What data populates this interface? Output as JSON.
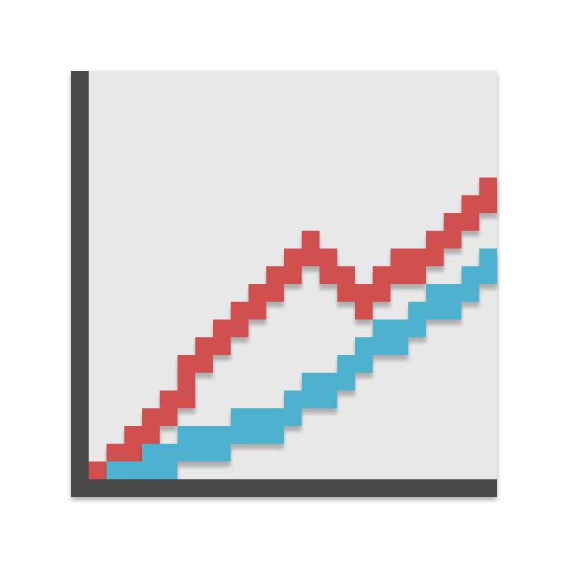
{
  "icon": {
    "name": "line-chart-icon",
    "style": "pixel-art",
    "colors": {
      "canvas": "#e8e8e8",
      "axis": "#4a4a4a",
      "shadow": "#000000",
      "series_red": "#d05050",
      "series_blue": "#4db0cc"
    },
    "axes": {
      "x_range": [
        0,
        22
      ],
      "y_range": [
        0,
        22
      ]
    },
    "series": [
      {
        "id": "red",
        "color": "#d05050",
        "points": [
          [
            0,
            0
          ],
          [
            1,
            1
          ],
          [
            2,
            2
          ],
          [
            3,
            3
          ],
          [
            4,
            4
          ],
          [
            5,
            5
          ],
          [
            5,
            6
          ],
          [
            6,
            7
          ],
          [
            7,
            8
          ],
          [
            8,
            9
          ],
          [
            9,
            10
          ],
          [
            10,
            11
          ],
          [
            11,
            12
          ],
          [
            12,
            13
          ],
          [
            13,
            12
          ],
          [
            14,
            11
          ],
          [
            15,
            10
          ],
          [
            16,
            11
          ],
          [
            17,
            12
          ],
          [
            18,
            12
          ],
          [
            19,
            13
          ],
          [
            20,
            14
          ],
          [
            21,
            15
          ],
          [
            22,
            16
          ]
        ]
      },
      {
        "id": "blue",
        "color": "#4db0cc",
        "points": [
          [
            1,
            0
          ],
          [
            2,
            0
          ],
          [
            3,
            1
          ],
          [
            4,
            1
          ],
          [
            5,
            2
          ],
          [
            6,
            2
          ],
          [
            7,
            2
          ],
          [
            8,
            3
          ],
          [
            9,
            3
          ],
          [
            10,
            3
          ],
          [
            11,
            4
          ],
          [
            12,
            5
          ],
          [
            13,
            5
          ],
          [
            14,
            6
          ],
          [
            15,
            7
          ],
          [
            16,
            8
          ],
          [
            17,
            8
          ],
          [
            18,
            9
          ],
          [
            19,
            10
          ],
          [
            20,
            10
          ],
          [
            21,
            11
          ],
          [
            22,
            12
          ]
        ]
      }
    ]
  }
}
